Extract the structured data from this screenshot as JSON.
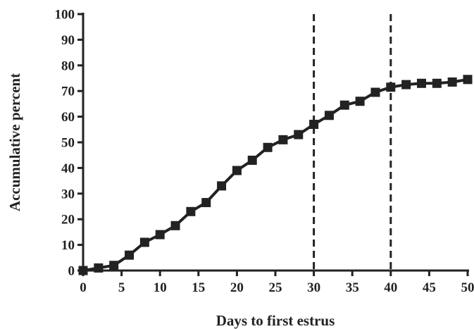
{
  "chart_data": {
    "type": "line",
    "title": "",
    "xlabel": "Days to first estrus",
    "ylabel": "Accumulative percent",
    "xlim": [
      0,
      50
    ],
    "ylim": [
      0,
      100
    ],
    "x_ticks": [
      0,
      5,
      10,
      15,
      20,
      25,
      30,
      35,
      40,
      45,
      50
    ],
    "y_ticks": [
      0,
      10,
      20,
      30,
      40,
      50,
      60,
      70,
      80,
      90,
      100
    ],
    "grid": false,
    "legend": "none",
    "series": [
      {
        "marker": "square",
        "color": "#222222",
        "x": [
          0,
          2,
          4,
          6,
          8,
          10,
          12,
          14,
          16,
          18,
          20,
          22,
          24,
          26,
          28,
          30,
          32,
          34,
          36,
          38,
          40,
          42,
          44,
          46,
          48,
          50
        ],
        "y": [
          0,
          1,
          2,
          6,
          11,
          14,
          17.5,
          23,
          26.5,
          33,
          39,
          43,
          48,
          51,
          53,
          57,
          60.5,
          64.5,
          66,
          69.5,
          71.5,
          72.5,
          73,
          73,
          73.5,
          74.5
        ]
      }
    ],
    "reference_lines": [
      {
        "axis": "x",
        "value": 30,
        "style": "dashed"
      },
      {
        "axis": "x",
        "value": 40,
        "style": "dashed"
      }
    ]
  }
}
